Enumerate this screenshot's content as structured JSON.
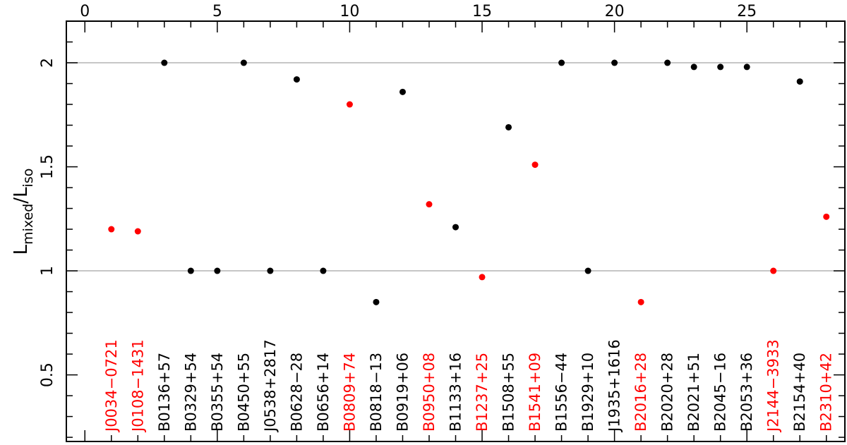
{
  "chart_data": {
    "type": "scatter",
    "title": "",
    "xlabel": "",
    "ylabel": {
      "base": "L",
      "sub1": "mixed",
      "sep": "/L",
      "sub2": "iso"
    },
    "xlim": [
      -0.7,
      28.7
    ],
    "ylim": [
      0.18,
      2.2
    ],
    "x_ticks": [
      0,
      5,
      10,
      15,
      20,
      25
    ],
    "x_tick_labels": [
      "0",
      "5",
      "10",
      "15",
      "20",
      "25"
    ],
    "y_ticks": [
      0.5,
      1,
      1.5,
      2
    ],
    "y_tick_labels": [
      "0.5",
      "1",
      "1.5",
      "2"
    ],
    "reference_lines": [
      1,
      2
    ],
    "grid": false,
    "colors": {
      "black": "#000000",
      "red": "#ff0000",
      "reference": "#b4b4b4"
    },
    "points": [
      {
        "x": 1,
        "y": 1.2,
        "name": "J0034−0721",
        "color": "red"
      },
      {
        "x": 2,
        "y": 1.19,
        "name": "J0108−1431",
        "color": "red"
      },
      {
        "x": 3,
        "y": 2.0,
        "name": "B0136+57",
        "color": "black"
      },
      {
        "x": 4,
        "y": 1.0,
        "name": "B0329+54",
        "color": "black"
      },
      {
        "x": 5,
        "y": 1.0,
        "name": "B0355+54",
        "color": "black"
      },
      {
        "x": 6,
        "y": 2.0,
        "name": "B0450+55",
        "color": "black"
      },
      {
        "x": 7,
        "y": 1.0,
        "name": "J0538+2817",
        "color": "black"
      },
      {
        "x": 8,
        "y": 1.92,
        "name": "B0628−28",
        "color": "black"
      },
      {
        "x": 9,
        "y": 1.0,
        "name": "B0656+14",
        "color": "black"
      },
      {
        "x": 10,
        "y": 1.8,
        "name": "B0809+74",
        "color": "red"
      },
      {
        "x": 11,
        "y": 0.85,
        "name": "B0818−13",
        "color": "black"
      },
      {
        "x": 12,
        "y": 1.86,
        "name": "B0919+06",
        "color": "black"
      },
      {
        "x": 13,
        "y": 1.32,
        "name": "B0950+08",
        "color": "red"
      },
      {
        "x": 14,
        "y": 1.21,
        "name": "B1133+16",
        "color": "black"
      },
      {
        "x": 15,
        "y": 0.97,
        "name": "B1237+25",
        "color": "red"
      },
      {
        "x": 16,
        "y": 1.69,
        "name": "B1508+55",
        "color": "black"
      },
      {
        "x": 17,
        "y": 1.51,
        "name": "B1541+09",
        "color": "red"
      },
      {
        "x": 18,
        "y": 2.0,
        "name": "B1556−44",
        "color": "black"
      },
      {
        "x": 19,
        "y": 1.0,
        "name": "B1929+10",
        "color": "black"
      },
      {
        "x": 20,
        "y": 2.0,
        "name": "J1935+1616",
        "color": "black"
      },
      {
        "x": 21,
        "y": 0.85,
        "name": "B2016+28",
        "color": "red"
      },
      {
        "x": 22,
        "y": 2.0,
        "name": "B2020+28",
        "color": "black"
      },
      {
        "x": 23,
        "y": 1.98,
        "name": "B2021+51",
        "color": "black"
      },
      {
        "x": 24,
        "y": 1.98,
        "name": "B2045−16",
        "color": "black"
      },
      {
        "x": 25,
        "y": 1.98,
        "name": "B2053+36",
        "color": "black"
      },
      {
        "x": 26,
        "y": 1.0,
        "name": "J2144−3933",
        "color": "red"
      },
      {
        "x": 27,
        "y": 1.91,
        "name": "B2154+40",
        "color": "black"
      },
      {
        "x": 28,
        "y": 1.26,
        "name": "B2310+42",
        "color": "red"
      }
    ]
  }
}
